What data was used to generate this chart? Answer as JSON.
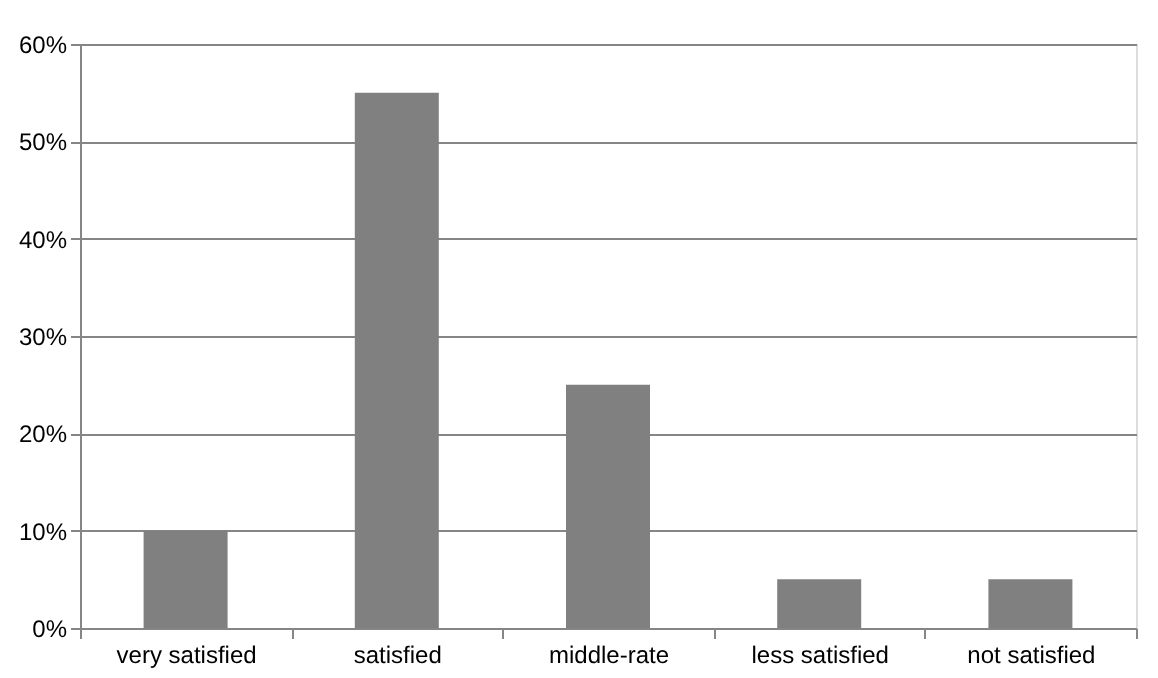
{
  "chart_data": {
    "type": "bar",
    "categories": [
      "very satisfied",
      "satisfied",
      "middle-rate",
      "less satisfied",
      "not satisfied"
    ],
    "values": [
      10,
      55,
      25,
      5,
      5
    ],
    "color": "#808080",
    "ylim": [
      0,
      60
    ],
    "yticks": [
      {
        "value": 0,
        "label": "0%"
      },
      {
        "value": 10,
        "label": "10%"
      },
      {
        "value": 20,
        "label": "20%"
      },
      {
        "value": 30,
        "label": "30%"
      },
      {
        "value": 40,
        "label": "40%"
      },
      {
        "value": 50,
        "label": "50%"
      },
      {
        "value": 60,
        "label": "60%"
      }
    ],
    "grid": "y"
  }
}
